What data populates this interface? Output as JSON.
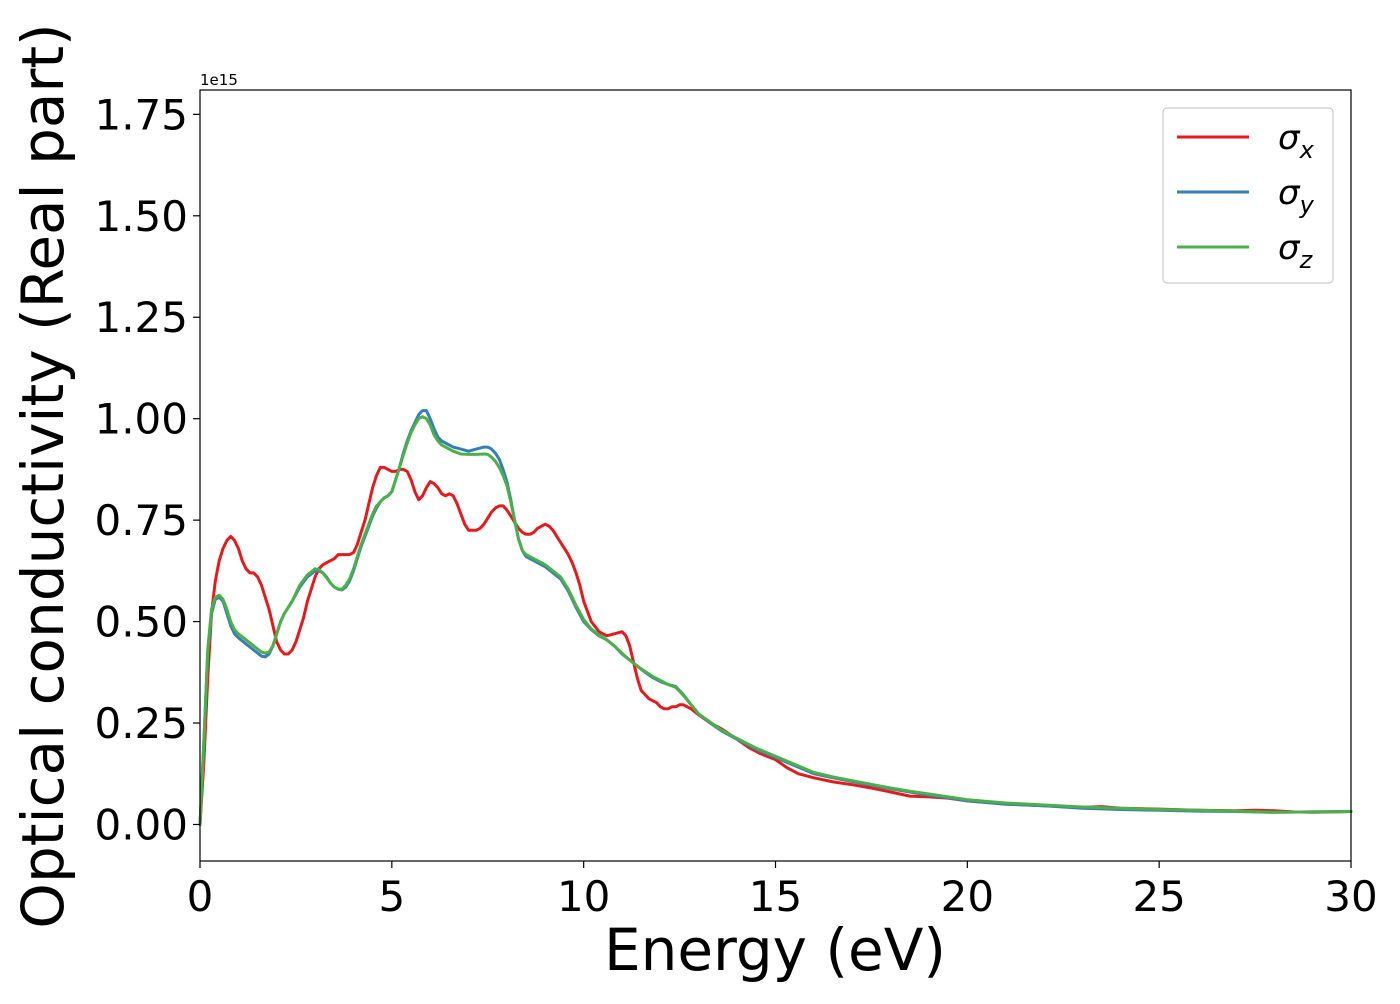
{
  "chart_data": {
    "type": "line",
    "title": "",
    "xlabel": "Energy (eV)",
    "ylabel": "Optical conductivity (Real part)",
    "y_offset_label": "1e15",
    "xlim": [
      0,
      30
    ],
    "ylim": [
      -0.09,
      1.81
    ],
    "x_ticks": [
      0,
      5,
      10,
      15,
      20,
      25,
      30
    ],
    "x_tick_labels": [
      "0",
      "5",
      "10",
      "15",
      "20",
      "25",
      "30"
    ],
    "y_ticks": [
      0.0,
      0.25,
      0.5,
      0.75,
      1.0,
      1.25,
      1.5,
      1.75
    ],
    "y_tick_labels": [
      "0.00",
      "0.25",
      "0.50",
      "0.75",
      "1.00",
      "1.25",
      "1.50",
      "1.75"
    ],
    "grid": false,
    "legend_position": "top-right",
    "series": [
      {
        "name": "σx",
        "symbol": "σ",
        "subscript": "x",
        "color": "#e41a1c",
        "x": [
          0.0,
          0.1,
          0.2,
          0.3,
          0.4,
          0.5,
          0.6,
          0.7,
          0.8,
          0.9,
          1.0,
          1.1,
          1.2,
          1.3,
          1.4,
          1.5,
          1.6,
          1.7,
          1.8,
          1.9,
          2.0,
          2.1,
          2.2,
          2.3,
          2.4,
          2.5,
          2.6,
          2.7,
          2.8,
          2.9,
          3.0,
          3.1,
          3.2,
          3.3,
          3.4,
          3.5,
          3.6,
          3.7,
          3.8,
          3.9,
          4.0,
          4.1,
          4.2,
          4.3,
          4.4,
          4.5,
          4.6,
          4.7,
          4.8,
          4.9,
          5.0,
          5.1,
          5.2,
          5.3,
          5.4,
          5.5,
          5.6,
          5.7,
          5.8,
          5.9,
          6.0,
          6.1,
          6.2,
          6.3,
          6.4,
          6.5,
          6.6,
          6.7,
          6.8,
          6.9,
          7.0,
          7.1,
          7.2,
          7.3,
          7.4,
          7.5,
          7.6,
          7.7,
          7.8,
          7.9,
          8.0,
          8.1,
          8.2,
          8.3,
          8.4,
          8.5,
          8.6,
          8.7,
          8.8,
          8.9,
          9.0,
          9.1,
          9.2,
          9.3,
          9.4,
          9.5,
          9.6,
          9.7,
          9.8,
          9.9,
          10.0,
          10.2,
          10.4,
          10.6,
          10.8,
          11.0,
          11.1,
          11.2,
          11.3,
          11.4,
          11.5,
          11.6,
          11.7,
          11.8,
          11.9,
          12.0,
          12.1,
          12.2,
          12.3,
          12.4,
          12.5,
          12.6,
          12.8,
          13.0,
          13.3,
          13.6,
          14.0,
          14.3,
          14.6,
          15.0,
          15.3,
          15.6,
          16.0,
          16.5,
          17.0,
          17.5,
          18.0,
          18.5,
          19.0,
          19.5,
          20.0,
          21.0,
          22.0,
          23.0,
          23.5,
          24.0,
          25.0,
          26.0,
          27.0,
          27.5,
          28.0,
          28.5,
          29.0,
          29.5,
          30.0
        ],
        "y": [
          0.0,
          0.15,
          0.36,
          0.52,
          0.6,
          0.65,
          0.68,
          0.7,
          0.71,
          0.7,
          0.68,
          0.65,
          0.63,
          0.62,
          0.62,
          0.61,
          0.59,
          0.56,
          0.53,
          0.49,
          0.45,
          0.43,
          0.42,
          0.42,
          0.43,
          0.45,
          0.48,
          0.51,
          0.55,
          0.58,
          0.61,
          0.63,
          0.64,
          0.645,
          0.65,
          0.655,
          0.665,
          0.665,
          0.665,
          0.665,
          0.67,
          0.69,
          0.72,
          0.75,
          0.79,
          0.83,
          0.86,
          0.88,
          0.88,
          0.875,
          0.87,
          0.87,
          0.875,
          0.875,
          0.87,
          0.85,
          0.82,
          0.8,
          0.81,
          0.83,
          0.845,
          0.84,
          0.83,
          0.815,
          0.81,
          0.815,
          0.81,
          0.79,
          0.765,
          0.74,
          0.725,
          0.725,
          0.725,
          0.73,
          0.74,
          0.755,
          0.77,
          0.78,
          0.785,
          0.785,
          0.775,
          0.76,
          0.745,
          0.73,
          0.72,
          0.715,
          0.715,
          0.72,
          0.73,
          0.735,
          0.74,
          0.735,
          0.725,
          0.71,
          0.695,
          0.68,
          0.665,
          0.645,
          0.62,
          0.59,
          0.55,
          0.5,
          0.475,
          0.465,
          0.47,
          0.475,
          0.465,
          0.44,
          0.4,
          0.36,
          0.33,
          0.32,
          0.31,
          0.305,
          0.3,
          0.29,
          0.285,
          0.285,
          0.29,
          0.29,
          0.295,
          0.295,
          0.285,
          0.27,
          0.25,
          0.235,
          0.21,
          0.19,
          0.175,
          0.16,
          0.14,
          0.125,
          0.115,
          0.105,
          0.098,
          0.09,
          0.08,
          0.07,
          0.068,
          0.065,
          0.058,
          0.051,
          0.046,
          0.042,
          0.044,
          0.04,
          0.038,
          0.035,
          0.034,
          0.035,
          0.034,
          0.031,
          0.03,
          0.031,
          0.032
        ]
      },
      {
        "name": "σy",
        "symbol": "σ",
        "subscript": "y",
        "color": "#377eb8",
        "x": [
          0.0,
          0.1,
          0.2,
          0.3,
          0.4,
          0.5,
          0.6,
          0.7,
          0.8,
          0.9,
          1.0,
          1.2,
          1.4,
          1.6,
          1.7,
          1.8,
          1.9,
          2.0,
          2.1,
          2.2,
          2.4,
          2.6,
          2.8,
          3.0,
          3.1,
          3.2,
          3.3,
          3.4,
          3.5,
          3.6,
          3.7,
          3.8,
          3.9,
          4.0,
          4.1,
          4.2,
          4.3,
          4.4,
          4.5,
          4.6,
          4.7,
          4.8,
          4.9,
          5.0,
          5.1,
          5.2,
          5.3,
          5.4,
          5.5,
          5.6,
          5.7,
          5.8,
          5.9,
          6.0,
          6.1,
          6.2,
          6.3,
          6.4,
          6.6,
          6.8,
          7.0,
          7.2,
          7.4,
          7.5,
          7.6,
          7.7,
          7.8,
          7.9,
          8.0,
          8.1,
          8.2,
          8.3,
          8.4,
          8.5,
          8.6,
          8.8,
          9.0,
          9.2,
          9.4,
          9.6,
          9.8,
          10.0,
          10.2,
          10.4,
          10.6,
          10.8,
          11.0,
          11.2,
          11.4,
          11.6,
          11.8,
          12.0,
          12.2,
          12.4,
          12.6,
          12.8,
          13.0,
          13.3,
          13.6,
          14.0,
          14.5,
          15.0,
          15.5,
          16.0,
          16.5,
          17.0,
          17.5,
          18.0,
          18.5,
          19.0,
          19.5,
          20.0,
          21.0,
          22.0,
          23.0,
          24.0,
          25.0,
          26.0,
          27.0,
          28.0,
          29.0,
          30.0
        ],
        "y": [
          0.0,
          0.2,
          0.42,
          0.52,
          0.555,
          0.56,
          0.55,
          0.52,
          0.49,
          0.47,
          0.46,
          0.445,
          0.43,
          0.415,
          0.413,
          0.42,
          0.44,
          0.47,
          0.5,
          0.52,
          0.55,
          0.585,
          0.61,
          0.625,
          0.625,
          0.62,
          0.61,
          0.595,
          0.585,
          0.58,
          0.578,
          0.585,
          0.6,
          0.625,
          0.655,
          0.685,
          0.71,
          0.735,
          0.76,
          0.78,
          0.795,
          0.805,
          0.81,
          0.82,
          0.85,
          0.88,
          0.915,
          0.945,
          0.97,
          0.99,
          1.01,
          1.02,
          1.02,
          1.0,
          0.975,
          0.955,
          0.945,
          0.94,
          0.93,
          0.925,
          0.92,
          0.925,
          0.93,
          0.93,
          0.925,
          0.915,
          0.9,
          0.875,
          0.845,
          0.8,
          0.75,
          0.705,
          0.675,
          0.66,
          0.655,
          0.645,
          0.635,
          0.62,
          0.605,
          0.575,
          0.535,
          0.5,
          0.48,
          0.465,
          0.455,
          0.44,
          0.42,
          0.405,
          0.39,
          0.375,
          0.362,
          0.352,
          0.345,
          0.34,
          0.32,
          0.295,
          0.272,
          0.25,
          0.23,
          0.21,
          0.185,
          0.165,
          0.145,
          0.125,
          0.115,
          0.106,
          0.097,
          0.088,
          0.08,
          0.072,
          0.066,
          0.058,
          0.05,
          0.046,
          0.04,
          0.037,
          0.035,
          0.033,
          0.032,
          0.03,
          0.031,
          0.032
        ]
      },
      {
        "name": "σz",
        "symbol": "σ",
        "subscript": "z",
        "color": "#4daf4a",
        "x": [
          0.0,
          0.1,
          0.2,
          0.3,
          0.4,
          0.5,
          0.6,
          0.7,
          0.8,
          0.9,
          1.0,
          1.2,
          1.4,
          1.6,
          1.7,
          1.8,
          1.9,
          2.0,
          2.1,
          2.2,
          2.4,
          2.6,
          2.8,
          3.0,
          3.1,
          3.2,
          3.3,
          3.4,
          3.5,
          3.6,
          3.7,
          3.8,
          3.9,
          4.0,
          4.1,
          4.2,
          4.3,
          4.4,
          4.5,
          4.6,
          4.7,
          4.8,
          4.9,
          5.0,
          5.1,
          5.2,
          5.3,
          5.4,
          5.5,
          5.6,
          5.7,
          5.8,
          5.9,
          6.0,
          6.1,
          6.2,
          6.3,
          6.4,
          6.6,
          6.8,
          7.0,
          7.2,
          7.4,
          7.5,
          7.6,
          7.7,
          7.8,
          7.9,
          8.0,
          8.1,
          8.2,
          8.3,
          8.4,
          8.5,
          8.6,
          8.8,
          9.0,
          9.2,
          9.4,
          9.6,
          9.8,
          10.0,
          10.2,
          10.4,
          10.6,
          10.8,
          11.0,
          11.2,
          11.4,
          11.6,
          11.8,
          12.0,
          12.2,
          12.4,
          12.6,
          12.8,
          13.0,
          13.3,
          13.6,
          14.0,
          14.5,
          15.0,
          15.5,
          16.0,
          16.5,
          17.0,
          17.5,
          18.0,
          18.5,
          19.0,
          19.5,
          20.0,
          21.0,
          22.0,
          23.0,
          24.0,
          25.0,
          26.0,
          27.0,
          28.0,
          29.0,
          30.0
        ],
        "y": [
          0.0,
          0.2,
          0.43,
          0.53,
          0.56,
          0.565,
          0.555,
          0.53,
          0.5,
          0.48,
          0.47,
          0.455,
          0.44,
          0.425,
          0.422,
          0.425,
          0.44,
          0.47,
          0.5,
          0.52,
          0.55,
          0.59,
          0.615,
          0.63,
          0.628,
          0.62,
          0.608,
          0.595,
          0.585,
          0.58,
          0.58,
          0.59,
          0.605,
          0.63,
          0.66,
          0.69,
          0.715,
          0.74,
          0.765,
          0.785,
          0.795,
          0.805,
          0.81,
          0.82,
          0.85,
          0.88,
          0.91,
          0.94,
          0.965,
          0.985,
          1.0,
          1.005,
          1.0,
          0.985,
          0.96,
          0.945,
          0.935,
          0.93,
          0.92,
          0.913,
          0.912,
          0.912,
          0.913,
          0.912,
          0.905,
          0.895,
          0.88,
          0.86,
          0.835,
          0.795,
          0.75,
          0.705,
          0.675,
          0.665,
          0.66,
          0.65,
          0.64,
          0.625,
          0.61,
          0.58,
          0.54,
          0.505,
          0.482,
          0.467,
          0.455,
          0.44,
          0.422,
          0.405,
          0.39,
          0.377,
          0.365,
          0.355,
          0.345,
          0.338,
          0.318,
          0.295,
          0.272,
          0.252,
          0.232,
          0.212,
          0.188,
          0.168,
          0.148,
          0.128,
          0.117,
          0.108,
          0.099,
          0.09,
          0.082,
          0.075,
          0.068,
          0.061,
          0.053,
          0.048,
          0.043,
          0.04,
          0.037,
          0.035,
          0.033,
          0.03,
          0.031,
          0.032
        ]
      }
    ]
  }
}
